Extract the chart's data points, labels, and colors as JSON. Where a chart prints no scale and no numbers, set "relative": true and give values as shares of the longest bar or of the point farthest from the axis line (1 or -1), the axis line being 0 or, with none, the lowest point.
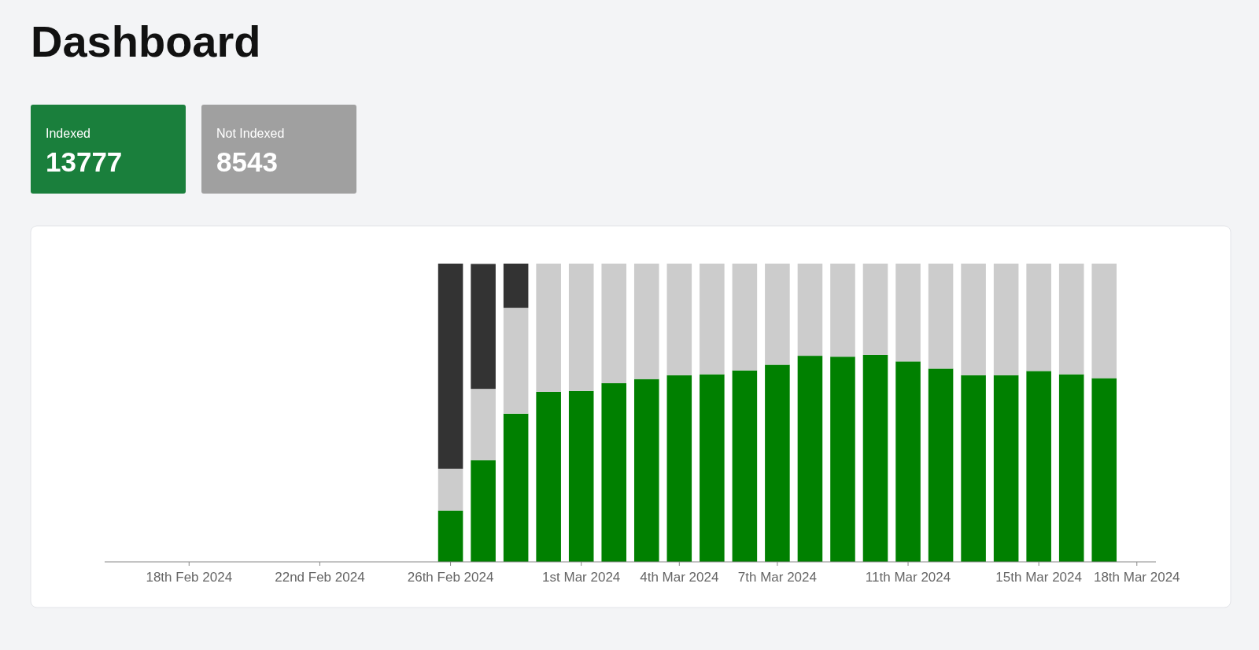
{
  "chart_data": [
    {
      "type": "other",
      "title": "Dashboard",
      "categories": [
        "Indexed",
        "Not Indexed"
      ],
      "values": [
        13777,
        8543
      ],
      "data_labels": true,
      "colors": [
        "#1a7f3c",
        "#a0a0a0"
      ]
    },
    {
      "type": "bar",
      "stacked": true,
      "relative": true,
      "x": [
        "2024-02-26",
        "2024-02-27",
        "2024-02-28",
        "2024-02-29",
        "2024-03-01",
        "2024-03-02",
        "2024-03-03",
        "2024-03-04",
        "2024-03-05",
        "2024-03-06",
        "2024-03-07",
        "2024-03-08",
        "2024-03-09",
        "2024-03-10",
        "2024-03-11",
        "2024-03-12",
        "2024-03-13",
        "2024-03-14",
        "2024-03-15",
        "2024-03-16",
        "2024-03-17"
      ],
      "xlim": [
        "2024-02-15T10:00",
        "2024-03-18T14:00"
      ],
      "xticks": [
        {
          "value": "2024-02-18",
          "label": "18th Feb 2024"
        },
        {
          "value": "2024-02-22",
          "label": "22nd Feb 2024"
        },
        {
          "value": "2024-02-26",
          "label": "26th Feb 2024"
        },
        {
          "value": "2024-03-01",
          "label": "1st Mar 2024"
        },
        {
          "value": "2024-03-04",
          "label": "4th Mar 2024"
        },
        {
          "value": "2024-03-07",
          "label": "7th Mar 2024"
        },
        {
          "value": "2024-03-11",
          "label": "11th Mar 2024"
        },
        {
          "value": "2024-03-15",
          "label": "15th Mar 2024"
        },
        {
          "value": "2024-03-18",
          "label": "18th Mar 2024"
        }
      ],
      "series": [
        {
          "color": "#008000",
          "values": [
            0.172,
            0.341,
            0.497,
            0.57,
            0.573,
            0.599,
            0.613,
            0.626,
            0.629,
            0.642,
            0.661,
            0.691,
            0.688,
            0.694,
            0.672,
            0.648,
            0.626,
            0.626,
            0.64,
            0.629,
            0.616
          ]
        },
        {
          "color": "#cccccc",
          "values": [
            0.14,
            0.239,
            0.355,
            0.43,
            0.427,
            0.401,
            0.387,
            0.374,
            0.371,
            0.358,
            0.339,
            0.309,
            0.312,
            0.306,
            0.328,
            0.352,
            0.374,
            0.374,
            0.36,
            0.371,
            0.384
          ]
        },
        {
          "color": "#333333",
          "values": [
            0.688,
            0.419,
            0.148,
            0,
            0,
            0,
            0,
            0,
            0,
            0,
            0,
            0,
            0,
            0,
            0,
            0,
            0,
            0,
            0,
            0,
            0
          ]
        }
      ]
    }
  ]
}
